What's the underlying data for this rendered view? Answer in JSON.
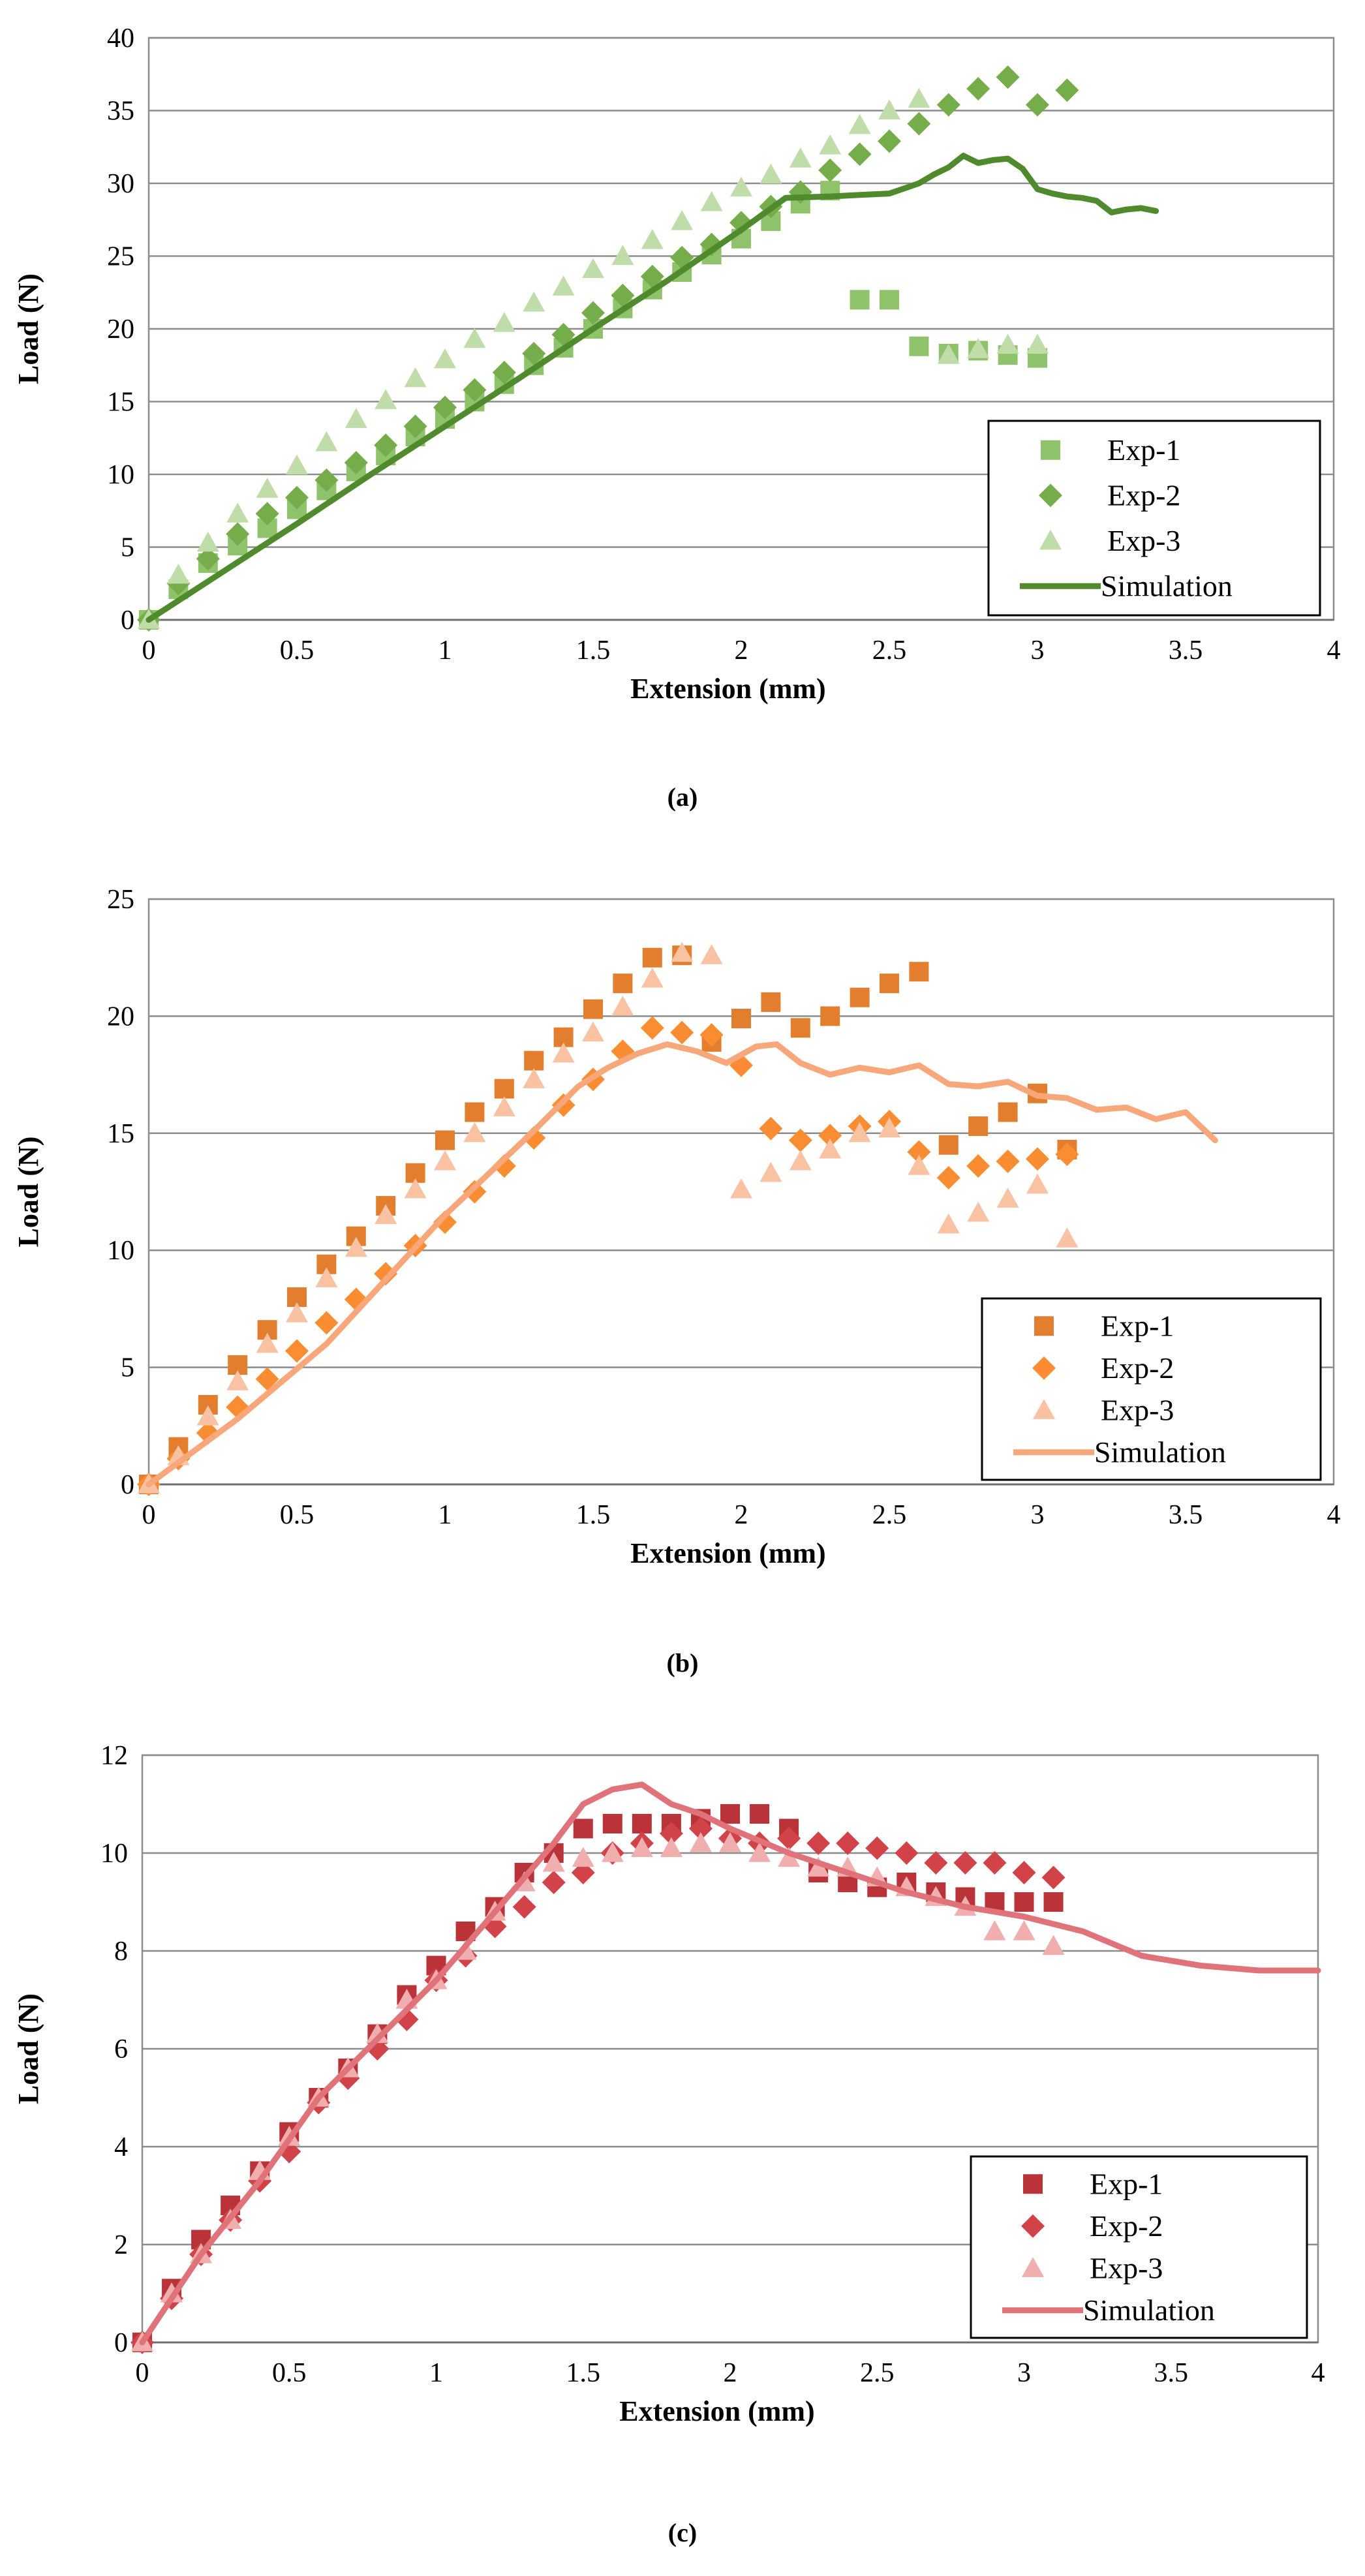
{
  "chart_data": [
    {
      "type": "scatter",
      "caption": "(a)",
      "xlabel": "Extension (mm)",
      "ylabel": "Load (N)",
      "xlim": [
        0,
        4
      ],
      "ylim": [
        0,
        40
      ],
      "xticks": [
        "0",
        "0.5",
        "1",
        "1.5",
        "2",
        "2.5",
        "3",
        "3.5",
        "4"
      ],
      "yticks": [
        "0",
        "5",
        "10",
        "15",
        "20",
        "25",
        "30",
        "35",
        "40"
      ],
      "grid": true,
      "legend_position": "bottom-right",
      "colors": {
        "exp1": "#8fc36b",
        "exp2": "#74ad4a",
        "exp3": "#bfdca9",
        "sim": "#4f8a2c"
      },
      "series": [
        {
          "name": "Exp-1",
          "marker": "square",
          "x": [
            0,
            0.1,
            0.2,
            0.3,
            0.4,
            0.5,
            0.6,
            0.7,
            0.8,
            0.9,
            1.0,
            1.1,
            1.2,
            1.3,
            1.4,
            1.5,
            1.6,
            1.7,
            1.8,
            1.9,
            2.0,
            2.1,
            2.2,
            2.3,
            2.4,
            2.5,
            2.6,
            2.7,
            2.8,
            2.9,
            3.0
          ],
          "y": [
            0,
            2.1,
            3.9,
            5.1,
            6.3,
            7.6,
            8.9,
            10.2,
            11.3,
            12.6,
            13.8,
            15.0,
            16.2,
            17.5,
            18.7,
            20.0,
            21.4,
            22.7,
            23.9,
            25.1,
            26.2,
            27.4,
            28.6,
            29.5,
            22.0,
            22.0,
            18.8,
            18.3,
            18.5,
            18.2,
            18.0
          ]
        },
        {
          "name": "Exp-2",
          "marker": "diamond",
          "x": [
            0,
            0.1,
            0.2,
            0.3,
            0.4,
            0.5,
            0.6,
            0.7,
            0.8,
            0.9,
            1.0,
            1.1,
            1.2,
            1.3,
            1.4,
            1.5,
            1.6,
            1.7,
            1.8,
            1.9,
            2.0,
            2.1,
            2.2,
            2.3,
            2.4,
            2.5,
            2.6,
            2.7,
            2.8,
            2.9,
            3.0,
            3.1
          ],
          "y": [
            0,
            2.5,
            4.2,
            5.9,
            7.3,
            8.4,
            9.6,
            10.8,
            12.0,
            13.3,
            14.6,
            15.8,
            17.0,
            18.3,
            19.6,
            21.1,
            22.3,
            23.6,
            24.9,
            25.8,
            27.3,
            28.4,
            29.4,
            30.9,
            32.0,
            32.9,
            34.1,
            35.4,
            36.5,
            37.3,
            35.4,
            36.4
          ]
        },
        {
          "name": "Exp-3",
          "marker": "triangle",
          "x": [
            0,
            0.1,
            0.2,
            0.3,
            0.4,
            0.5,
            0.6,
            0.7,
            0.8,
            0.9,
            1.0,
            1.1,
            1.2,
            1.3,
            1.4,
            1.5,
            1.6,
            1.7,
            1.8,
            1.9,
            2.0,
            2.1,
            2.2,
            2.3,
            2.4,
            2.5,
            2.6,
            2.7,
            2.8,
            2.9,
            3.0
          ],
          "y": [
            0,
            3.1,
            5.3,
            7.3,
            9.0,
            10.6,
            12.2,
            13.8,
            15.1,
            16.6,
            17.9,
            19.3,
            20.4,
            21.8,
            22.9,
            24.1,
            25.0,
            26.1,
            27.4,
            28.7,
            29.7,
            30.6,
            31.7,
            32.6,
            34.0,
            35.0,
            35.8,
            18.2,
            18.6,
            18.9,
            18.9
          ]
        },
        {
          "name": "Simulation",
          "marker": "line",
          "x": [
            0,
            0.25,
            0.5,
            0.75,
            1.0,
            1.25,
            1.5,
            1.75,
            2.0,
            2.15,
            2.3,
            2.4,
            2.5,
            2.6,
            2.65,
            2.7,
            2.75,
            2.8,
            2.85,
            2.9,
            2.95,
            3.0,
            3.05,
            3.1,
            3.15,
            3.2,
            3.25,
            3.3,
            3.35,
            3.4
          ],
          "y": [
            0,
            3.3,
            6.6,
            10.0,
            13.3,
            16.6,
            20.0,
            23.3,
            26.8,
            29.0,
            29.1,
            29.2,
            29.3,
            30.0,
            30.6,
            31.1,
            31.9,
            31.4,
            31.6,
            31.7,
            31.0,
            29.6,
            29.3,
            29.1,
            29.0,
            28.8,
            28.0,
            28.2,
            28.3,
            28.1
          ]
        }
      ]
    },
    {
      "type": "scatter",
      "caption": "(b)",
      "xlabel": "Extension (mm)",
      "ylabel": "Load (N)",
      "xlim": [
        0,
        4
      ],
      "ylim": [
        0,
        25
      ],
      "xticks": [
        "0",
        "0.5",
        "1",
        "1.5",
        "2",
        "2.5",
        "3",
        "3.5",
        "4"
      ],
      "yticks": [
        "0",
        "5",
        "10",
        "15",
        "20",
        "25"
      ],
      "grid": true,
      "legend_position": "bottom-right",
      "colors": {
        "exp1": "#e37e2e",
        "exp2": "#fa8d32",
        "exp3": "#f8c2a3",
        "sim": "#f7a77a"
      },
      "series": [
        {
          "name": "Exp-1",
          "marker": "square",
          "x": [
            0,
            0.1,
            0.2,
            0.3,
            0.4,
            0.5,
            0.6,
            0.7,
            0.8,
            0.9,
            1.0,
            1.1,
            1.2,
            1.3,
            1.4,
            1.5,
            1.6,
            1.7,
            1.8,
            1.9,
            2.0,
            2.1,
            2.2,
            2.3,
            2.4,
            2.5,
            2.6,
            2.7,
            2.8,
            2.9,
            3.0,
            3.1
          ],
          "y": [
            0,
            1.6,
            3.4,
            5.1,
            6.6,
            8.0,
            9.4,
            10.6,
            11.9,
            13.3,
            14.7,
            15.9,
            16.9,
            18.1,
            19.1,
            20.3,
            21.4,
            22.5,
            22.6,
            18.9,
            19.9,
            20.6,
            19.5,
            20.0,
            20.8,
            21.4,
            21.9,
            14.5,
            15.3,
            15.9,
            16.7,
            14.3
          ]
        },
        {
          "name": "Exp-2",
          "marker": "diamond",
          "x": [
            0,
            0.1,
            0.2,
            0.3,
            0.4,
            0.5,
            0.6,
            0.7,
            0.8,
            0.9,
            1.0,
            1.1,
            1.2,
            1.3,
            1.4,
            1.5,
            1.6,
            1.7,
            1.8,
            1.9,
            2.0,
            2.1,
            2.2,
            2.3,
            2.4,
            2.5,
            2.6,
            2.7,
            2.8,
            2.9,
            3.0,
            3.1
          ],
          "y": [
            0,
            1.1,
            2.2,
            3.3,
            4.5,
            5.7,
            6.9,
            7.9,
            9.0,
            10.2,
            11.2,
            12.5,
            13.6,
            14.8,
            16.2,
            17.3,
            18.5,
            19.5,
            19.3,
            19.2,
            17.9,
            15.2,
            14.7,
            14.9,
            15.3,
            15.5,
            14.2,
            13.1,
            13.6,
            13.8,
            13.9,
            14.1
          ]
        },
        {
          "name": "Exp-3",
          "marker": "triangle",
          "x": [
            0,
            0.1,
            0.2,
            0.3,
            0.4,
            0.5,
            0.6,
            0.7,
            0.8,
            0.9,
            1.0,
            1.1,
            1.2,
            1.3,
            1.4,
            1.5,
            1.6,
            1.7,
            1.8,
            1.9,
            2.0,
            2.1,
            2.2,
            2.3,
            2.4,
            2.5,
            2.6,
            2.7,
            2.8,
            2.9,
            3.0,
            3.1
          ],
          "y": [
            0,
            1.2,
            2.9,
            4.4,
            6.0,
            7.3,
            8.8,
            10.1,
            11.5,
            12.6,
            13.8,
            15.0,
            16.1,
            17.3,
            18.4,
            19.3,
            20.4,
            21.6,
            22.7,
            22.6,
            12.6,
            13.3,
            13.8,
            14.3,
            15.0,
            15.2,
            13.6,
            11.1,
            11.6,
            12.2,
            12.8,
            10.5
          ]
        },
        {
          "name": "Simulation",
          "marker": "line",
          "x": [
            0,
            0.3,
            0.6,
            1.0,
            1.3,
            1.45,
            1.55,
            1.65,
            1.75,
            1.85,
            1.95,
            2.05,
            2.12,
            2.2,
            2.3,
            2.4,
            2.5,
            2.6,
            2.7,
            2.8,
            2.9,
            3.0,
            3.1,
            3.2,
            3.3,
            3.4,
            3.5,
            3.6
          ],
          "y": [
            0,
            2.8,
            6.0,
            11.5,
            15.1,
            17.0,
            17.8,
            18.4,
            18.8,
            18.5,
            18.0,
            18.7,
            18.8,
            18.0,
            17.5,
            17.8,
            17.6,
            17.9,
            17.1,
            17.0,
            17.2,
            16.6,
            16.5,
            16.0,
            16.1,
            15.6,
            15.9,
            14.7
          ]
        }
      ]
    },
    {
      "type": "scatter",
      "caption": "(c)",
      "xlabel": "Extension (mm)",
      "ylabel": "Load (N)",
      "xlim": [
        0,
        4
      ],
      "ylim": [
        0,
        12
      ],
      "xticks": [
        "0",
        "0.5",
        "1",
        "1.5",
        "2",
        "2.5",
        "3",
        "3.5",
        "4"
      ],
      "yticks": [
        "0",
        "2",
        "4",
        "6",
        "8",
        "10",
        "12"
      ],
      "grid": true,
      "legend_position": "bottom-right",
      "colors": {
        "exp1": "#b93339",
        "exp2": "#d14348",
        "exp3": "#f0aeae",
        "sim": "#e07379"
      },
      "series": [
        {
          "name": "Exp-1",
          "marker": "square",
          "x": [
            0,
            0.1,
            0.2,
            0.3,
            0.4,
            0.5,
            0.6,
            0.7,
            0.8,
            0.9,
            1.0,
            1.1,
            1.2,
            1.3,
            1.4,
            1.5,
            1.6,
            1.7,
            1.8,
            1.9,
            2.0,
            2.1,
            2.2,
            2.3,
            2.4,
            2.5,
            2.6,
            2.7,
            2.8,
            2.9,
            3.0,
            3.1
          ],
          "y": [
            0,
            1.1,
            2.1,
            2.8,
            3.5,
            4.3,
            5.0,
            5.6,
            6.3,
            7.1,
            7.7,
            8.4,
            8.9,
            9.6,
            10.0,
            10.5,
            10.6,
            10.6,
            10.6,
            10.7,
            10.8,
            10.8,
            10.5,
            9.6,
            9.4,
            9.3,
            9.4,
            9.2,
            9.1,
            9.0,
            9.0,
            9.0
          ]
        },
        {
          "name": "Exp-2",
          "marker": "diamond",
          "x": [
            0,
            0.1,
            0.2,
            0.3,
            0.4,
            0.5,
            0.6,
            0.7,
            0.8,
            0.9,
            1.0,
            1.1,
            1.2,
            1.3,
            1.4,
            1.5,
            1.6,
            1.7,
            1.8,
            1.9,
            2.0,
            2.1,
            2.2,
            2.3,
            2.4,
            2.5,
            2.6,
            2.7,
            2.8,
            2.9,
            3.0,
            3.1
          ],
          "y": [
            0,
            0.9,
            1.8,
            2.5,
            3.3,
            3.9,
            4.9,
            5.4,
            6.0,
            6.6,
            7.4,
            7.9,
            8.5,
            8.9,
            9.4,
            9.6,
            10.0,
            10.2,
            10.4,
            10.5,
            10.3,
            10.2,
            10.3,
            10.2,
            10.2,
            10.1,
            10.0,
            9.8,
            9.8,
            9.8,
            9.6,
            9.5
          ]
        },
        {
          "name": "Exp-3",
          "marker": "triangle",
          "x": [
            0,
            0.1,
            0.2,
            0.3,
            0.4,
            0.5,
            0.6,
            0.7,
            0.8,
            0.9,
            1.0,
            1.1,
            1.2,
            1.3,
            1.4,
            1.5,
            1.6,
            1.7,
            1.8,
            1.9,
            2.0,
            2.1,
            2.2,
            2.3,
            2.4,
            2.5,
            2.6,
            2.7,
            2.8,
            2.9,
            3.0,
            3.1
          ],
          "y": [
            0,
            1.0,
            1.8,
            2.5,
            3.5,
            4.2,
            5.0,
            5.6,
            6.3,
            7.0,
            7.4,
            8.0,
            8.8,
            9.4,
            9.8,
            9.9,
            10.0,
            10.1,
            10.1,
            10.2,
            10.2,
            10.0,
            9.9,
            9.7,
            9.7,
            9.5,
            9.3,
            9.1,
            8.9,
            8.4,
            8.4,
            8.1
          ]
        },
        {
          "name": "Simulation",
          "marker": "line",
          "x": [
            0,
            0.2,
            0.4,
            0.6,
            0.8,
            1.0,
            1.2,
            1.4,
            1.5,
            1.6,
            1.7,
            1.8,
            1.9,
            2.0,
            2.2,
            2.4,
            2.6,
            2.8,
            3.0,
            3.2,
            3.4,
            3.6,
            3.8,
            4.0
          ],
          "y": [
            0,
            1.8,
            3.3,
            5.0,
            6.2,
            7.4,
            8.8,
            10.2,
            11.0,
            11.3,
            11.4,
            11.0,
            10.8,
            10.5,
            10.0,
            9.6,
            9.2,
            8.9,
            8.7,
            8.4,
            7.9,
            7.7,
            7.6,
            7.6
          ]
        }
      ]
    }
  ]
}
